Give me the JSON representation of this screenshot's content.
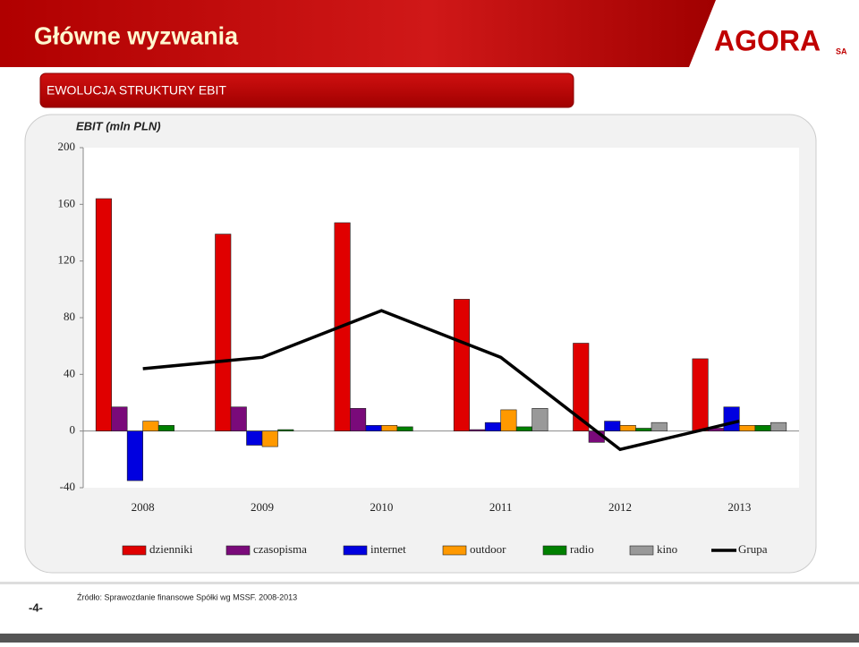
{
  "header": {
    "title": "Główne wyzwania",
    "logo": "AGORA",
    "logo_suffix": "SA",
    "section": "EWOLUCJA STRUKTURY EBIT"
  },
  "chart_data": {
    "type": "bar",
    "title": "EBIT (mln PLN)",
    "categories": [
      "2008",
      "2009",
      "2010",
      "2011",
      "2012",
      "2013"
    ],
    "series": [
      {
        "name": "dzienniki",
        "color": "#e00000",
        "values": [
          164,
          139,
          147,
          93,
          62,
          51
        ]
      },
      {
        "name": "czasopisma",
        "color": "#7a0a7a",
        "values": [
          17,
          17,
          16,
          1,
          -8,
          2
        ]
      },
      {
        "name": "internet",
        "color": "#0000e0",
        "values": [
          -35,
          -10,
          4,
          6,
          7,
          17
        ]
      },
      {
        "name": "outdoor",
        "color": "#ff9900",
        "values": [
          7,
          -11,
          4,
          15,
          4,
          4
        ]
      },
      {
        "name": "radio",
        "color": "#008000",
        "values": [
          4,
          1,
          3,
          3,
          2,
          4
        ]
      },
      {
        "name": "kino",
        "color": "#999999",
        "values": [
          null,
          null,
          null,
          16,
          6,
          6
        ]
      },
      {
        "name": "Grupa",
        "type": "line",
        "color": "#000000",
        "values": [
          44,
          52,
          85,
          52,
          -13,
          7
        ]
      }
    ],
    "ylim": [
      -40,
      200
    ],
    "yticks": [
      -40,
      0,
      40,
      80,
      120,
      160,
      200
    ],
    "grid": false,
    "legend": "bottom"
  },
  "footer": {
    "page": "-4-",
    "source": "Źródło: Sprawozdanie finansowe Spółki wg MSSF. 2008-2013"
  }
}
